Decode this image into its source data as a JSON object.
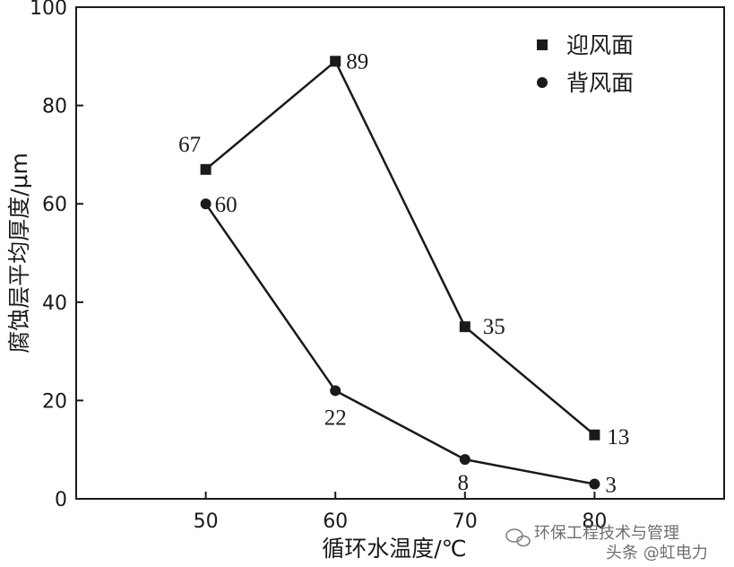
{
  "chart_data": {
    "type": "line",
    "title": "",
    "xlabel": "循环水温度/℃",
    "ylabel": "腐蚀层平均厚度/μm",
    "x": [
      50,
      60,
      70,
      80
    ],
    "xlim": [
      40,
      90
    ],
    "ylim": [
      0,
      100
    ],
    "xticks": [
      50,
      60,
      70,
      80
    ],
    "yticks": [
      0,
      20,
      40,
      60,
      80,
      100
    ],
    "grid": false,
    "legend_position": "top-right",
    "series": [
      {
        "name": "迎风面",
        "marker": "square",
        "values": [
          67,
          89,
          35,
          13
        ],
        "labels": [
          "67",
          "89",
          "35",
          "13"
        ]
      },
      {
        "name": "背风面",
        "marker": "circle",
        "values": [
          60,
          22,
          8,
          3
        ],
        "labels": [
          "60",
          "22",
          "8",
          "3"
        ]
      }
    ]
  },
  "colors": {
    "line": "#1a1a1a",
    "marker": "#1a1a1a",
    "axis": "#1a1a1a"
  },
  "watermark": {
    "icon": "wechat-icon",
    "text1": "环保工程技术与管理",
    "text2": "头条 @虹电力"
  }
}
